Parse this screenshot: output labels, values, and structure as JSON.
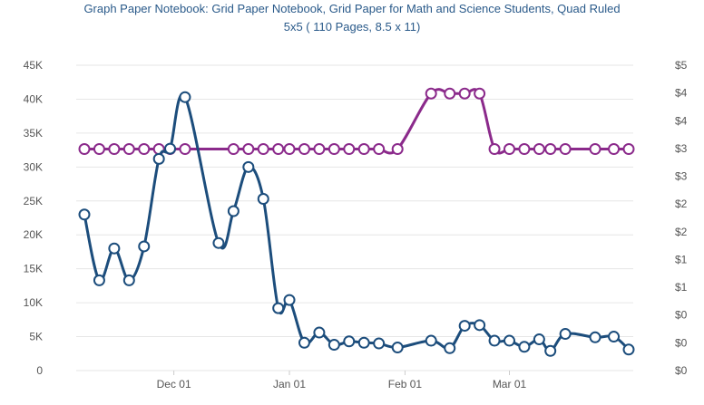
{
  "chart_data": {
    "type": "line",
    "title_line1": "Graph Paper Notebook: Grid Paper Notebook, Grid Paper for Math and Science Students, Quad Ruled",
    "title_line2": "5x5 ( 110 Pages, 8.5 x 11)",
    "x_tick_labels": [
      "Dec 01",
      "Jan 01",
      "Feb 01",
      "Mar 01"
    ],
    "y_left_ticks": [
      "0",
      "5K",
      "10K",
      "15K",
      "20K",
      "25K",
      "30K",
      "35K",
      "40K",
      "45K"
    ],
    "y_left_range": [
      0,
      45000
    ],
    "y_right_ticks": [
      "$0",
      "$0",
      "$0",
      "$1",
      "$1",
      "$2",
      "$2",
      "$3",
      "$3",
      "$4",
      "$4",
      "$5"
    ],
    "y_right_range": [
      0,
      5.5
    ],
    "grid": true,
    "colors": {
      "rank": "#1c4d7c",
      "price": "#8b2a8b",
      "grid": "#e6e6e6"
    },
    "series": [
      {
        "axis": "left",
        "x": [
          "2024-11-07",
          "2024-11-11",
          "2024-11-15",
          "2024-11-19",
          "2024-11-23",
          "2024-11-27",
          "2024-11-30",
          "2024-12-04",
          "2024-12-13",
          "2024-12-17",
          "2024-12-21",
          "2024-12-25",
          "2024-12-29",
          "2025-01-01",
          "2025-01-05",
          "2025-01-09",
          "2025-01-13",
          "2025-01-17",
          "2025-01-21",
          "2025-01-25",
          "2025-01-30",
          "2025-02-08",
          "2025-02-13",
          "2025-02-17",
          "2025-02-21",
          "2025-02-25",
          "2025-03-01",
          "2025-03-05",
          "2025-03-09",
          "2025-03-12",
          "2025-03-16",
          "2025-03-24",
          "2025-03-29",
          "2025-04-02"
        ],
        "values": [
          23000,
          13300,
          18000,
          13300,
          18300,
          31200,
          32700,
          40300,
          18800,
          23500,
          30000,
          25300,
          9200,
          10400,
          4100,
          5600,
          3800,
          4300,
          4100,
          4000,
          3400,
          4400,
          3300,
          6600,
          6700,
          4400,
          4400,
          3500,
          4600,
          2900,
          5400,
          4900,
          5000,
          3100
        ]
      },
      {
        "axis": "right",
        "x": [
          "2024-11-07",
          "2024-11-11",
          "2024-11-15",
          "2024-11-19",
          "2024-11-23",
          "2024-11-27",
          "2024-11-30",
          "2024-12-04",
          "2024-12-17",
          "2024-12-21",
          "2024-12-25",
          "2024-12-29",
          "2025-01-01",
          "2025-01-05",
          "2025-01-09",
          "2025-01-13",
          "2025-01-17",
          "2025-01-21",
          "2025-01-25",
          "2025-01-30",
          "2025-02-08",
          "2025-02-13",
          "2025-02-17",
          "2025-02-21",
          "2025-02-25",
          "2025-03-01",
          "2025-03-05",
          "2025-03-09",
          "2025-03-12",
          "2025-03-16",
          "2025-03-24",
          "2025-03-29",
          "2025-04-02"
        ],
        "values": [
          3.99,
          3.99,
          3.99,
          3.99,
          3.99,
          3.99,
          3.99,
          3.99,
          3.99,
          3.99,
          3.99,
          3.99,
          3.99,
          3.99,
          3.99,
          3.99,
          3.99,
          3.99,
          3.99,
          3.99,
          4.99,
          4.99,
          4.99,
          4.99,
          3.99,
          3.99,
          3.99,
          3.99,
          3.99,
          3.99,
          3.99,
          3.99,
          3.99
        ]
      }
    ]
  }
}
